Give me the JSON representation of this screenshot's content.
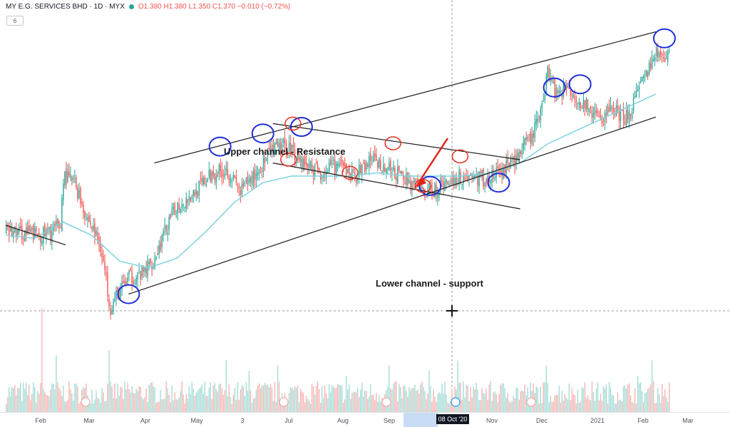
{
  "header": {
    "symbol": "MY E.G. SERVICES BHD · 1D · MYX",
    "ohlc": "O1.380  H1.380  L1.350  C1.370  −0.010 (−0.72%)",
    "indicator_badge": "6"
  },
  "annotations": {
    "upper_label": "Upper channel - Resistance",
    "lower_label": "Lower channel - support"
  },
  "x_ticks": [
    "Feb",
    "Mar",
    "Apr",
    "May",
    "3",
    "Jul",
    "Aug",
    "Sep",
    "Nov",
    "Dec",
    "2021",
    "Feb",
    "Mar"
  ],
  "crosshair": {
    "date_label": "08 Oct '20"
  },
  "colors": {
    "up": "#26a69a",
    "down": "#ef5350",
    "ma": "#7fd3dc",
    "trendline": "#1a1a1a",
    "marker_blue": "#1f2fd6",
    "marker_red": "#e0321f",
    "arrow": "#e0261b"
  },
  "chart_data": {
    "type": "candlestick",
    "title": "MY E.G. SERVICES BHD · 1D · MYX",
    "ylim": [
      0.55,
      1.55
    ],
    "price_keypoints": [
      [
        0,
        0.93
      ],
      [
        28,
        0.92
      ],
      [
        38,
        0.95
      ],
      [
        40,
        1.1
      ],
      [
        48,
        1.08
      ],
      [
        56,
        0.98
      ],
      [
        66,
        0.89
      ],
      [
        73,
        0.7
      ],
      [
        78,
        0.74
      ],
      [
        86,
        0.79
      ],
      [
        95,
        0.8
      ],
      [
        104,
        0.85
      ],
      [
        112,
        0.94
      ],
      [
        120,
        1.01
      ],
      [
        132,
        1.05
      ],
      [
        145,
        1.11
      ],
      [
        155,
        1.12
      ],
      [
        164,
        1.05
      ],
      [
        175,
        1.11
      ],
      [
        187,
        1.18
      ],
      [
        198,
        1.19
      ],
      [
        208,
        1.14
      ],
      [
        220,
        1.11
      ],
      [
        232,
        1.13
      ],
      [
        244,
        1.1
      ],
      [
        256,
        1.15
      ],
      [
        268,
        1.12
      ],
      [
        280,
        1.09
      ],
      [
        292,
        1.05
      ],
      [
        300,
        1.06
      ],
      [
        312,
        1.09
      ],
      [
        324,
        1.1
      ],
      [
        336,
        1.09
      ],
      [
        348,
        1.12
      ],
      [
        358,
        1.16
      ],
      [
        368,
        1.22
      ],
      [
        375,
        1.31
      ],
      [
        379,
        1.43
      ],
      [
        384,
        1.36
      ],
      [
        394,
        1.37
      ],
      [
        404,
        1.32
      ],
      [
        416,
        1.27
      ],
      [
        424,
        1.31
      ],
      [
        432,
        1.27
      ],
      [
        440,
        1.33
      ],
      [
        448,
        1.41
      ],
      [
        455,
        1.47
      ]
    ],
    "ma_keypoints": [
      [
        0,
        0.92
      ],
      [
        20,
        0.91
      ],
      [
        40,
        0.96
      ],
      [
        60,
        0.92
      ],
      [
        80,
        0.84
      ],
      [
        100,
        0.82
      ],
      [
        120,
        0.85
      ],
      [
        140,
        0.93
      ],
      [
        160,
        1.02
      ],
      [
        180,
        1.08
      ],
      [
        200,
        1.1
      ],
      [
        220,
        1.1
      ],
      [
        240,
        1.1
      ],
      [
        260,
        1.11
      ],
      [
        280,
        1.1
      ],
      [
        300,
        1.1
      ],
      [
        320,
        1.1
      ],
      [
        340,
        1.11
      ],
      [
        360,
        1.14
      ],
      [
        380,
        1.2
      ],
      [
        400,
        1.24
      ],
      [
        420,
        1.28
      ],
      [
        440,
        1.32
      ],
      [
        455,
        1.35
      ]
    ],
    "volume_spikes": [
      [
        25,
        1.0
      ],
      [
        35,
        0.55
      ],
      [
        72,
        0.6
      ],
      [
        154,
        0.5
      ],
      [
        170,
        0.4
      ],
      [
        190,
        0.45
      ],
      [
        238,
        0.35
      ],
      [
        268,
        0.45
      ],
      [
        296,
        0.4
      ],
      [
        316,
        0.5
      ],
      [
        378,
        0.45
      ],
      [
        442,
        0.35
      ],
      [
        452,
        0.5
      ]
    ],
    "lines": {
      "outer_upper": [
        [
          104,
          1.14
        ],
        [
          455,
          1.54
        ]
      ],
      "outer_lower": [
        [
          86,
          0.74
        ],
        [
          455,
          1.28
        ]
      ],
      "inner_upper": [
        [
          187,
          1.26
        ],
        [
          360,
          1.15
        ]
      ],
      "inner_lower": [
        [
          187,
          1.14
        ],
        [
          360,
          1.0
        ]
      ],
      "early_down": [
        [
          0,
          0.95
        ],
        [
          42,
          0.89
        ]
      ]
    },
    "markers_blue": [
      [
        150,
        1.19
      ],
      [
        180,
        1.23
      ],
      [
        207,
        1.25
      ],
      [
        297,
        1.07
      ],
      [
        345,
        1.08
      ],
      [
        384,
        1.37
      ],
      [
        402,
        1.38
      ],
      [
        461,
        1.52
      ],
      [
        86,
        0.74
      ]
    ],
    "markers_red": [
      [
        201,
        1.26
      ],
      [
        198,
        1.15
      ],
      [
        241,
        1.11
      ],
      [
        271,
        1.2
      ],
      [
        318,
        1.16
      ],
      [
        292,
        1.07
      ]
    ],
    "n_days": 465
  }
}
